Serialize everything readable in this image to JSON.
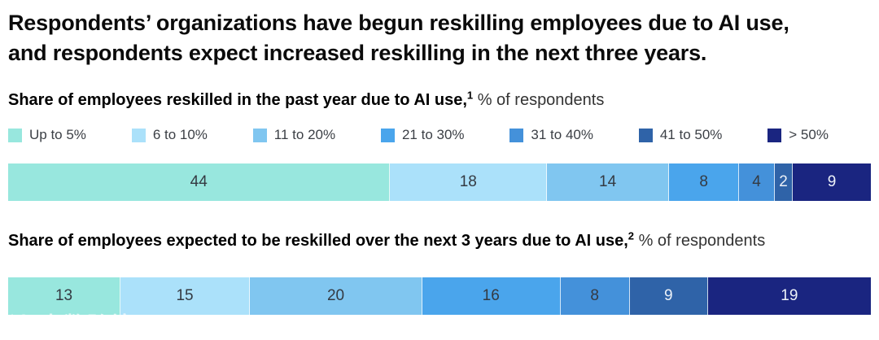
{
  "title_lines": [
    "Respondents’ organizations have begun reskilling employees due to AI use,",
    "and respondents expect increased reskilling in the next three years."
  ],
  "colors": {
    "label_dark": "#343a42",
    "label_light": "#ecf1f8",
    "separator": "rgba(255,255,255,0.75)"
  },
  "legend": {
    "items": [
      {
        "label": "Up to 5%",
        "color": "#98e7de"
      },
      {
        "label": "6 to 10%",
        "color": "#abe1fa"
      },
      {
        "label": "11 to 20%",
        "color": "#80c6f0"
      },
      {
        "label": "21 to 30%",
        "color": "#4aa5ec"
      },
      {
        "label": "31 to 40%",
        "color": "#4491da"
      },
      {
        "label": "41 to 50%",
        "color": "#2f63a8"
      },
      {
        "label": "> 50%",
        "color": "#1a2580"
      }
    ]
  },
  "chart_data": [
    {
      "type": "bar",
      "orientation": "horizontal-stacked",
      "title": "Share of employees reskilled in the past year due to AI use,",
      "footnote_marker": "1",
      "unit_label": "% of respondents",
      "categories": [
        "Up to 5%",
        "6 to 10%",
        "11 to 20%",
        "21 to 30%",
        "31 to 40%",
        "41 to 50%",
        "> 50%"
      ],
      "values": [
        44,
        18,
        14,
        8,
        4,
        2,
        9
      ],
      "label_styles": [
        "dark",
        "dark",
        "dark",
        "dark",
        "dark",
        "light",
        "light"
      ],
      "xlim": [
        0,
        100
      ],
      "legend_position": "top"
    },
    {
      "type": "bar",
      "orientation": "horizontal-stacked",
      "title": "Share of employees expected to be reskilled over the next 3 years due to AI use,",
      "footnote_marker": "2",
      "unit_label": "% of respondents",
      "categories": [
        "Up to 5%",
        "6 to 10%",
        "11 to 20%",
        "21 to 30%",
        "31 to 40%",
        "41 to 50%",
        "> 50%"
      ],
      "values": [
        13,
        15,
        20,
        16,
        8,
        9,
        19
      ],
      "label_styles": [
        "dark",
        "dark",
        "dark",
        "dark",
        "dark",
        "light",
        "light"
      ],
      "xlim": [
        0,
        100
      ],
      "legend_position": "shared-top"
    }
  ],
  "watermark": {
    "logo": "100",
    "text": "大数跨境"
  }
}
